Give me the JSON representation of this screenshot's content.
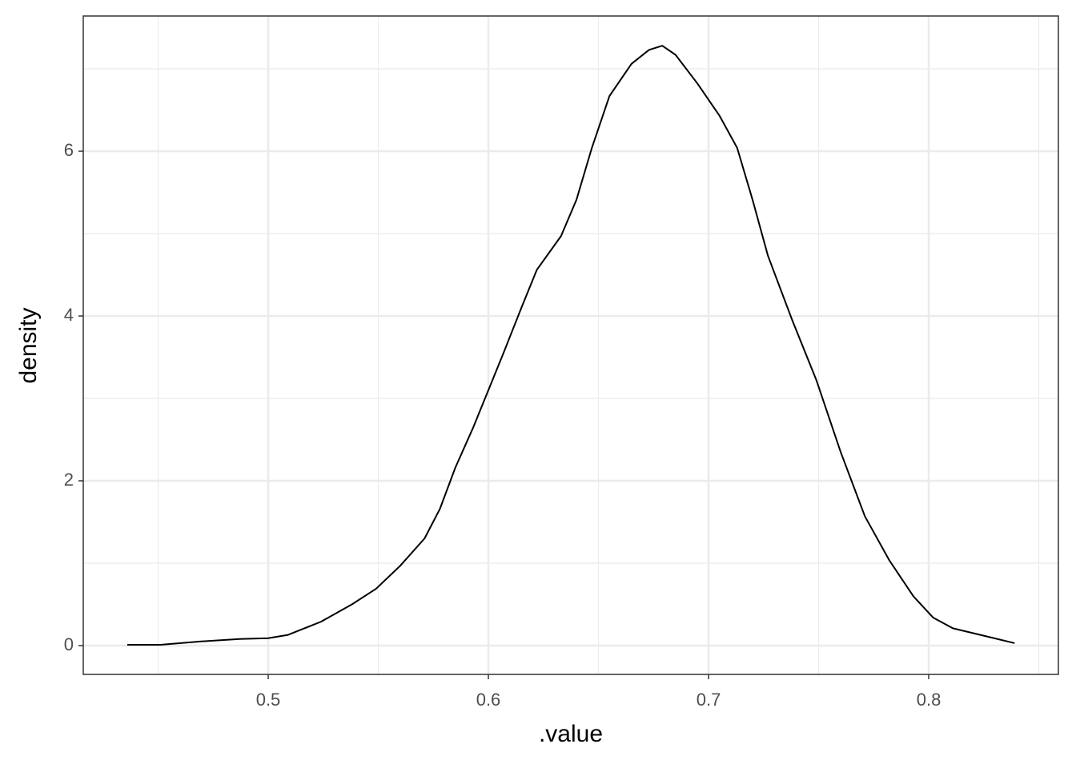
{
  "chart_data": {
    "type": "line",
    "x_label": ".value",
    "y_label": "density",
    "xlim": [
      0.416,
      0.8589
    ],
    "ylim": [
      -0.3495,
      7.641
    ],
    "xticks": [
      0.5,
      0.6,
      0.7,
      0.8
    ],
    "yticks": [
      0,
      2,
      4,
      6
    ],
    "x_minor_grid": [
      0.45,
      0.55,
      0.65,
      0.75,
      0.85
    ],
    "y_minor_grid": [
      1,
      3,
      5,
      7
    ],
    "grid": true,
    "series": [
      {
        "color": "#000000",
        "x": [
          0.436,
          0.451,
          0.469,
          0.487,
          0.5,
          0.509,
          0.524,
          0.538,
          0.549,
          0.56,
          0.571,
          0.578,
          0.585,
          0.593,
          0.6,
          0.607,
          0.615,
          0.622,
          0.633,
          0.64,
          0.647,
          0.655,
          0.665,
          0.673,
          0.679,
          0.685,
          0.695,
          0.705,
          0.713,
          0.72,
          0.727,
          0.738,
          0.749,
          0.76,
          0.771,
          0.782,
          0.793,
          0.802,
          0.811,
          0.825,
          0.839
        ],
        "values": [
          0.01,
          0.01,
          0.05,
          0.08,
          0.09,
          0.13,
          0.29,
          0.5,
          0.69,
          0.97,
          1.3,
          1.66,
          2.16,
          2.64,
          3.1,
          3.56,
          4.1,
          4.56,
          4.97,
          5.41,
          6.04,
          6.67,
          7.06,
          7.23,
          7.28,
          7.17,
          6.82,
          6.43,
          6.04,
          5.41,
          4.73,
          3.95,
          3.22,
          2.35,
          1.57,
          1.04,
          0.6,
          0.34,
          0.21,
          0.12,
          0.03
        ]
      }
    ]
  }
}
